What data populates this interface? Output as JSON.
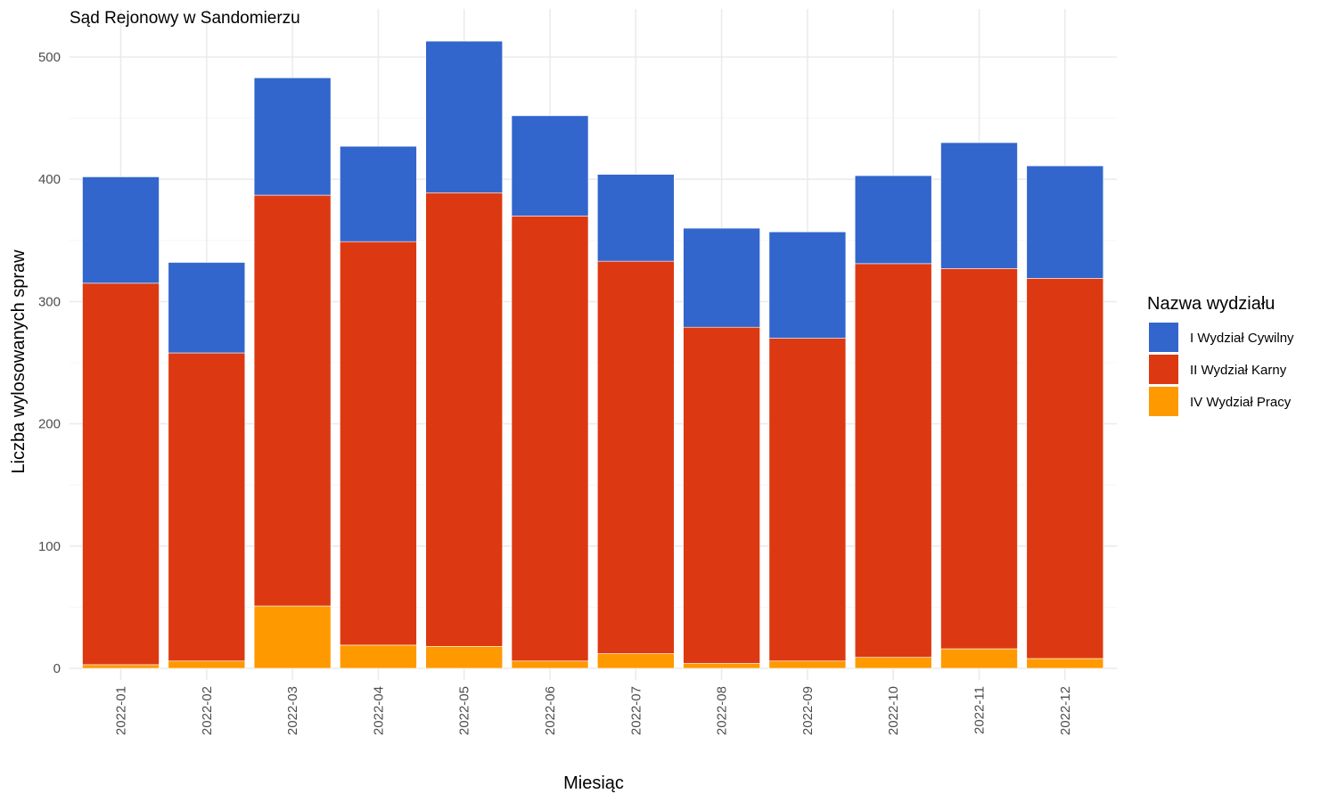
{
  "chart_data": {
    "type": "bar",
    "stacked": true,
    "title": "Sąd Rejonowy w Sandomierzu",
    "xlabel": "Miesiąc",
    "ylabel": "Liczba wylosowanych spraw",
    "ylim": [
      0,
      530
    ],
    "yticks": [
      0,
      100,
      200,
      300,
      400,
      500
    ],
    "grid": true,
    "legend": {
      "title": "Nazwa wydziału",
      "placement": "right"
    },
    "categories": [
      "2022-01",
      "2022-02",
      "2022-03",
      "2022-04",
      "2022-05",
      "2022-06",
      "2022-07",
      "2022-08",
      "2022-09",
      "2022-10",
      "2022-11",
      "2022-12"
    ],
    "series": [
      {
        "name": "I Wydział Cywilny",
        "color": "#3366cc",
        "values": [
          87,
          74,
          96,
          78,
          124,
          82,
          71,
          81,
          87,
          72,
          103,
          92
        ]
      },
      {
        "name": "II Wydział Karny",
        "color": "#dc3912",
        "values": [
          312,
          252,
          336,
          330,
          371,
          364,
          321,
          275,
          264,
          322,
          311,
          311
        ]
      },
      {
        "name": "IV Wydział Pracy",
        "color": "#ff9900",
        "values": [
          3,
          6,
          51,
          19,
          18,
          6,
          12,
          4,
          6,
          9,
          16,
          8
        ]
      }
    ]
  }
}
